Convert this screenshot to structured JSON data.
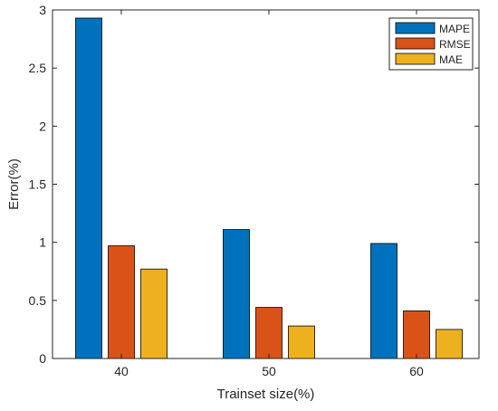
{
  "chart_data": {
    "type": "bar",
    "categories": [
      "40",
      "50",
      "60"
    ],
    "series": [
      {
        "name": "MAPE",
        "color": "#0072BD",
        "values": [
          2.93,
          1.11,
          0.99
        ]
      },
      {
        "name": "RMSE",
        "color": "#D95319",
        "values": [
          0.97,
          0.44,
          0.41
        ]
      },
      {
        "name": "MAE",
        "color": "#EDB120",
        "values": [
          0.77,
          0.28,
          0.25
        ]
      }
    ],
    "title": "",
    "xlabel": "Trainset size(%)",
    "ylabel": "Error(%)",
    "ylim": [
      0,
      3
    ],
    "yticks": [
      "0",
      "0.5",
      "1",
      "1.5",
      "2",
      "2.5",
      "3"
    ],
    "ytick_values": [
      0,
      0.5,
      1,
      1.5,
      2,
      2.5,
      3
    ],
    "grid": false,
    "legend_position": "top-right"
  }
}
